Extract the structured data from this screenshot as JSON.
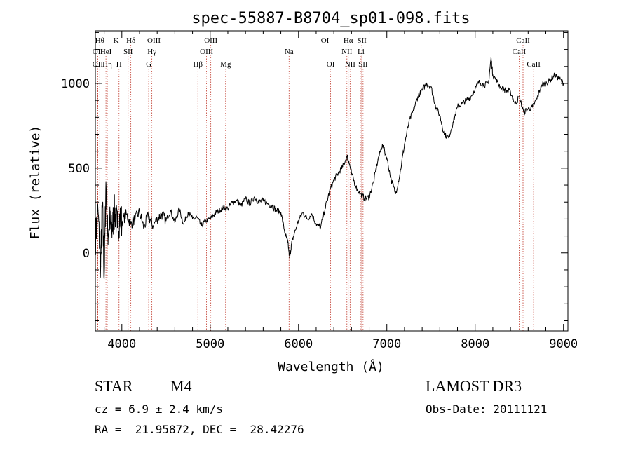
{
  "chart_data": {
    "type": "line",
    "title": "spec-55887-B8704_sp01-098.fits",
    "xlabel": "Wavelength (Å)",
    "ylabel": "Flux (relative)",
    "xlim": [
      3700,
      9050
    ],
    "ylim": [
      -460,
      1310
    ],
    "x_ticks": [
      4000,
      5000,
      6000,
      7000,
      8000,
      9000
    ],
    "y_ticks": [
      0,
      500,
      1000
    ],
    "series": [
      {
        "color": "#000000",
        "x": [
          3700,
          3730,
          3760,
          3780,
          3800,
          3820,
          3840,
          3860,
          3880,
          3900,
          3920,
          3950,
          3980,
          4000,
          4050,
          4100,
          4150,
          4200,
          4250,
          4300,
          4350,
          4400,
          4450,
          4500,
          4550,
          4600,
          4650,
          4700,
          4750,
          4800,
          4850,
          4900,
          4950,
          5000,
          5050,
          5100,
          5150,
          5200,
          5250,
          5300,
          5350,
          5400,
          5450,
          5500,
          5550,
          5600,
          5650,
          5700,
          5750,
          5800,
          5850,
          5880,
          5900,
          5920,
          5950,
          6000,
          6050,
          6100,
          6150,
          6200,
          6250,
          6300,
          6350,
          6400,
          6450,
          6500,
          6550,
          6570,
          6600,
          6650,
          6700,
          6750,
          6800,
          6850,
          6900,
          6950,
          7000,
          7050,
          7100,
          7150,
          7200,
          7250,
          7300,
          7350,
          7400,
          7450,
          7500,
          7550,
          7600,
          7650,
          7700,
          7750,
          7800,
          7850,
          7900,
          7950,
          8000,
          8050,
          8100,
          8150,
          8180,
          8200,
          8250,
          8300,
          8350,
          8400,
          8450,
          8500,
          8550,
          8600,
          8650,
          8700,
          8750,
          8800,
          8850,
          8900,
          8950,
          9000
        ],
        "y": [
          80,
          250,
          -80,
          300,
          -150,
          420,
          100,
          200,
          120,
          180,
          250,
          150,
          220,
          180,
          230,
          170,
          200,
          240,
          150,
          220,
          160,
          200,
          230,
          190,
          250,
          180,
          260,
          170,
          240,
          200,
          210,
          160,
          190,
          200,
          230,
          250,
          270,
          260,
          300,
          310,
          280,
          320,
          290,
          330,
          300,
          310,
          290,
          280,
          250,
          240,
          110,
          60,
          -30,
          50,
          110,
          190,
          240,
          200,
          230,
          170,
          150,
          260,
          360,
          430,
          470,
          510,
          570,
          540,
          470,
          390,
          350,
          320,
          330,
          420,
          550,
          640,
          560,
          430,
          350,
          470,
          640,
          770,
          840,
          920,
          960,
          1000,
          980,
          870,
          810,
          700,
          680,
          770,
          860,
          880,
          900,
          920,
          970,
          1010,
          990,
          1000,
          1150,
          1050,
          1010,
          970,
          960,
          950,
          880,
          920,
          830,
          850,
          860,
          910,
          990,
          1000,
          1020,
          1050,
          1030,
          1000
        ]
      }
    ],
    "line_labels": [
      {
        "wl": 3750,
        "row": 1,
        "label": "Hθ"
      },
      {
        "wl": 3727,
        "row": 2,
        "label": "OII"
      },
      {
        "wl": 3727,
        "row": 3,
        "label": "OII"
      },
      {
        "wl": 3820,
        "row": 2,
        "label": "HeI"
      },
      {
        "wl": 3835,
        "row": 3,
        "label": "Hη"
      },
      {
        "wl": 3934,
        "row": 1,
        "label": "K"
      },
      {
        "wl": 3968,
        "row": 3,
        "label": "H"
      },
      {
        "wl": 4071,
        "row": 2,
        "label": "SII"
      },
      {
        "wl": 4102,
        "row": 1,
        "label": "Hδ"
      },
      {
        "wl": 4340,
        "row": 2,
        "label": "Hγ"
      },
      {
        "wl": 4304,
        "row": 3,
        "label": "G"
      },
      {
        "wl": 4363,
        "row": 1,
        "label": "OIII"
      },
      {
        "wl": 4861,
        "row": 3,
        "label": "Hβ"
      },
      {
        "wl": 4959,
        "row": 2,
        "label": "OIII"
      },
      {
        "wl": 5007,
        "row": 1,
        "label": "OIII"
      },
      {
        "wl": 5175,
        "row": 3,
        "label": "Mg"
      },
      {
        "wl": 5893,
        "row": 2,
        "label": "Na"
      },
      {
        "wl": 6300,
        "row": 1,
        "label": "OI"
      },
      {
        "wl": 6364,
        "row": 3,
        "label": "OI"
      },
      {
        "wl": 6563,
        "row": 1,
        "label": "Hα"
      },
      {
        "wl": 6548,
        "row": 2,
        "label": "NII"
      },
      {
        "wl": 6584,
        "row": 3,
        "label": "NII"
      },
      {
        "wl": 6717,
        "row": 1,
        "label": "SII"
      },
      {
        "wl": 6708,
        "row": 2,
        "label": "Li"
      },
      {
        "wl": 6731,
        "row": 3,
        "label": "SII"
      },
      {
        "wl": 8542,
        "row": 1,
        "label": "CaII"
      },
      {
        "wl": 8498,
        "row": 2,
        "label": "CaII"
      },
      {
        "wl": 8662,
        "row": 3,
        "label": "CaII"
      }
    ],
    "line_color": "#c0392b"
  },
  "info": {
    "object_class": "STAR",
    "subclass": "M4",
    "cz": "cz = 6.9 ± 2.4 km/s",
    "coords": "RA =  21.95872, DEC =  28.42276",
    "survey": "LAMOST DR3",
    "obs_date": "Obs-Date: 20111121"
  }
}
